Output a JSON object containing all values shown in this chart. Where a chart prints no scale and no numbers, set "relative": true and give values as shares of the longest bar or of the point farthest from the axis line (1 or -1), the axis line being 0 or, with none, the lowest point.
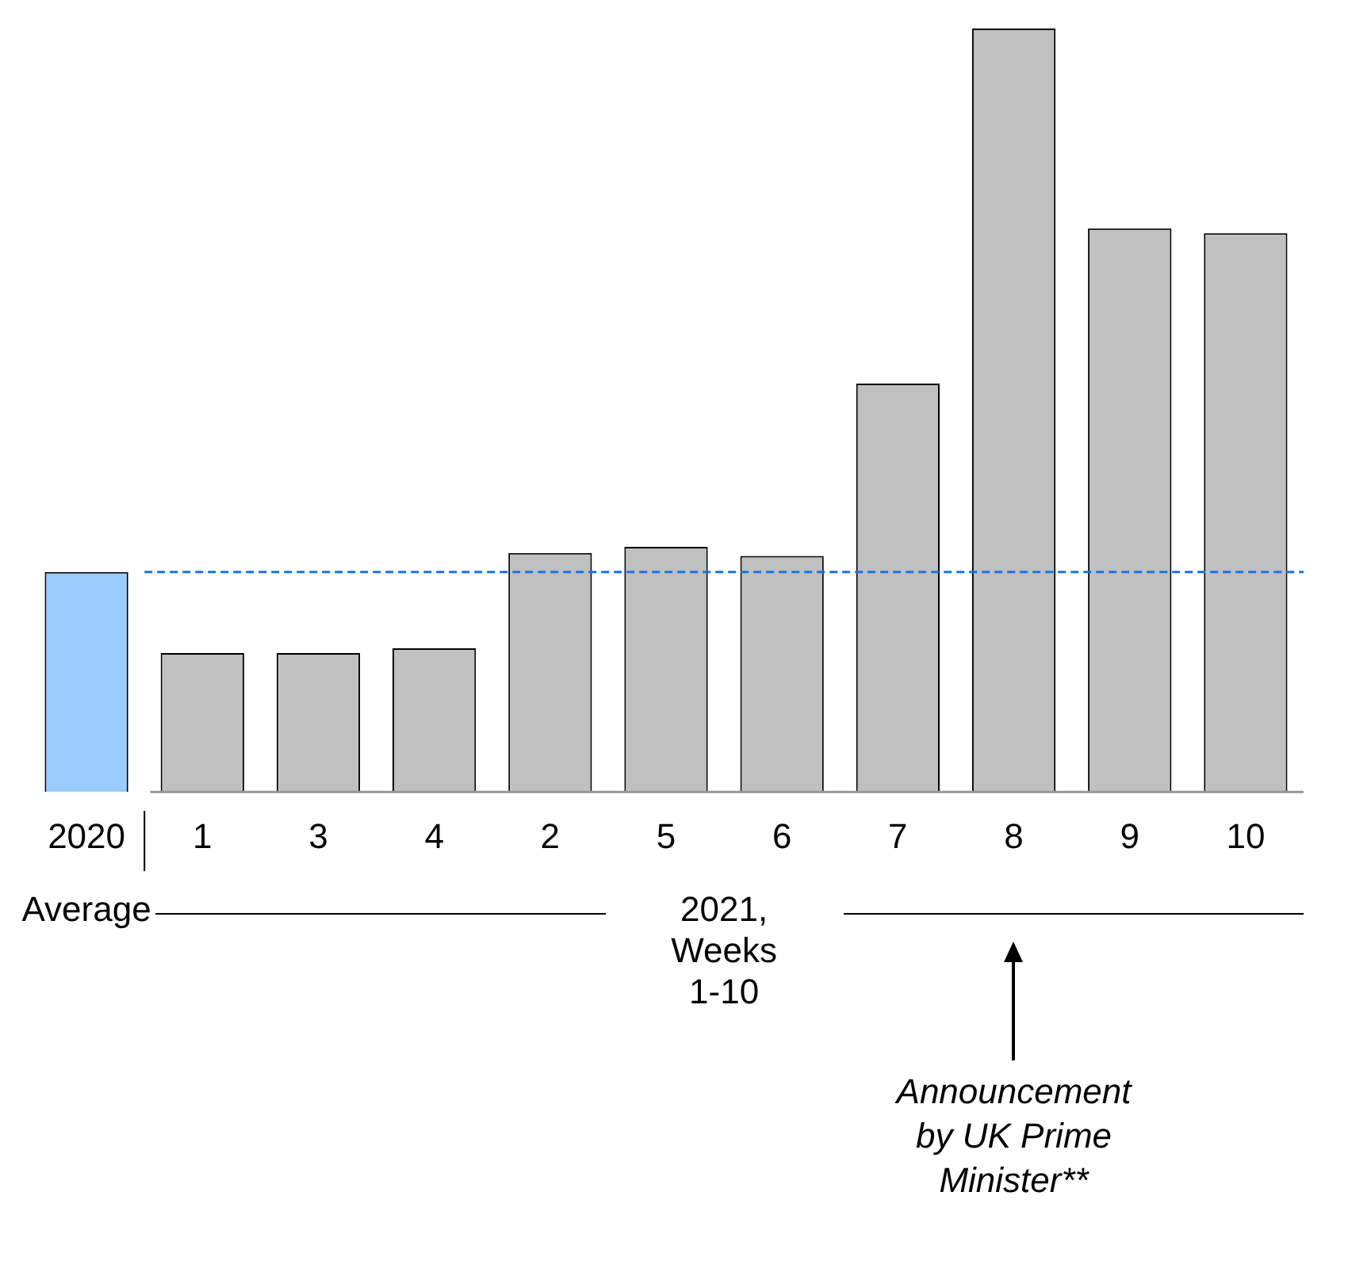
{
  "chart_data": {
    "type": "bar",
    "relative": true,
    "categories": [
      "2020",
      "1",
      "3",
      "4",
      "2",
      "5",
      "6",
      "7",
      "8",
      "9",
      "10"
    ],
    "values": [
      0.288,
      0.182,
      0.182,
      0.188,
      0.313,
      0.321,
      0.309,
      0.535,
      1,
      0.738,
      0.732
    ],
    "colors": [
      "#99ccff",
      "#c0c0c0",
      "#c0c0c0",
      "#c0c0c0",
      "#c0c0c0",
      "#c0c0c0",
      "#c0c0c0",
      "#c0c0c0",
      "#c0c0c0",
      "#c0c0c0",
      "#c0c0c0"
    ],
    "ref_lines": [
      {
        "axis": "y",
        "value": 0.288,
        "color": "#1a73e8",
        "line_style": "dashed"
      }
    ],
    "annotations": [
      "Average",
      "2021, Weeks 1-10",
      "Announcement by UK Prime Minister**"
    ],
    "grid": false,
    "legend": false
  }
}
